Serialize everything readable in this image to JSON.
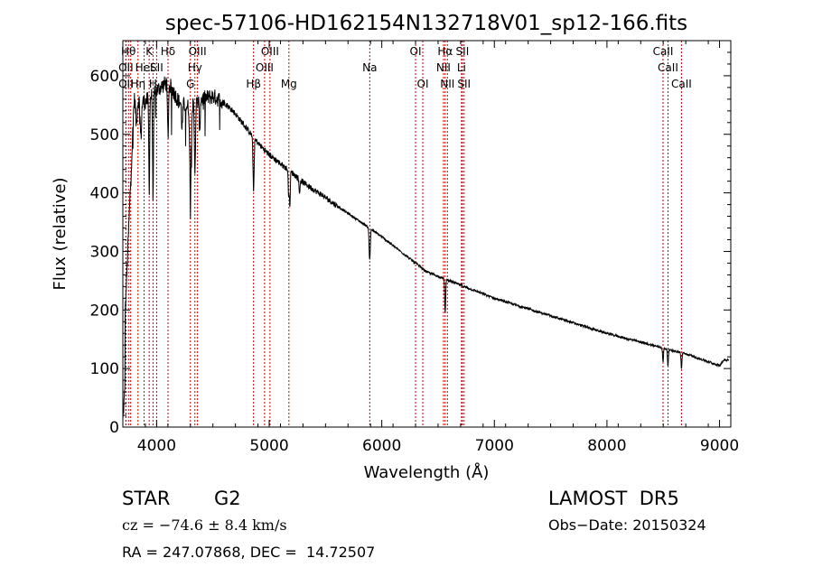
{
  "chart_data": {
    "type": "line",
    "title": "spec-57106-HD162154N132718V01_sp12-166.fits",
    "xlabel": "Wavelength (Å)",
    "ylabel": "Flux (relative)",
    "xlim": [
      3700,
      9100
    ],
    "ylim": [
      0,
      660
    ],
    "xticks": [
      4000,
      5000,
      6000,
      7000,
      8000,
      9000
    ],
    "yticks": [
      0,
      100,
      200,
      300,
      400,
      500,
      600
    ],
    "grid": false,
    "line_color": "#000000",
    "marker_color": "#cc0000",
    "continuum": [
      [
        3700,
        100
      ],
      [
        3800,
        560
      ],
      [
        3900,
        555
      ],
      [
        4000,
        575
      ],
      [
        4100,
        590
      ],
      [
        4200,
        555
      ],
      [
        4300,
        545
      ],
      [
        4400,
        560
      ],
      [
        4500,
        565
      ],
      [
        4600,
        555
      ],
      [
        4700,
        535
      ],
      [
        4800,
        510
      ],
      [
        4900,
        485
      ],
      [
        5000,
        465
      ],
      [
        5100,
        450
      ],
      [
        5200,
        435
      ],
      [
        5300,
        418
      ],
      [
        5400,
        405
      ],
      [
        5500,
        392
      ],
      [
        5600,
        378
      ],
      [
        5800,
        352
      ],
      [
        6000,
        325
      ],
      [
        6200,
        295
      ],
      [
        6400,
        265
      ],
      [
        6600,
        250
      ],
      [
        7000,
        220
      ],
      [
        7500,
        190
      ],
      [
        8000,
        160
      ],
      [
        8500,
        135
      ],
      [
        8700,
        125
      ],
      [
        9000,
        105
      ],
      [
        9040,
        115
      ],
      [
        9080,
        115
      ]
    ],
    "absorption": [
      [
        3934,
        160,
        4
      ],
      [
        3968,
        170,
        4
      ],
      [
        3820,
        40,
        6
      ],
      [
        3860,
        60,
        6
      ],
      [
        4101,
        90,
        5
      ],
      [
        4226,
        40,
        5
      ],
      [
        4300,
        150,
        6
      ],
      [
        4340,
        110,
        5
      ],
      [
        4383,
        50,
        4
      ],
      [
        4861,
        90,
        5
      ],
      [
        5172,
        40,
        4
      ],
      [
        5183,
        60,
        4
      ],
      [
        5269,
        25,
        4
      ],
      [
        5890,
        40,
        4
      ],
      [
        5896,
        30,
        4
      ],
      [
        6563,
        60,
        4
      ],
      [
        8498,
        25,
        4
      ],
      [
        8542,
        30,
        4
      ],
      [
        8662,
        28,
        4
      ]
    ],
    "lines": [
      {
        "wl": 3750,
        "label": "Hθ",
        "row": 0
      },
      {
        "wl": 3727,
        "label": "OII",
        "row": 1
      },
      {
        "wl": 3727,
        "label": "OII",
        "row": 2
      },
      {
        "wl": 3770,
        "label": "",
        "row": -1
      },
      {
        "wl": 3835,
        "label": "Hη",
        "row": 2
      },
      {
        "wl": 3889,
        "label": "HeI",
        "row": 1
      },
      {
        "wl": 3934,
        "label": "K",
        "row": 0
      },
      {
        "wl": 3968,
        "label": "H",
        "row": 2
      },
      {
        "wl": 4000,
        "label": "SII",
        "row": 1
      },
      {
        "wl": 4101,
        "label": "Hδ",
        "row": 0
      },
      {
        "wl": 4300,
        "label": "G",
        "row": 2
      },
      {
        "wl": 4340,
        "label": "Hγ",
        "row": 1
      },
      {
        "wl": 4363,
        "label": "OIII",
        "row": 0
      },
      {
        "wl": 4861,
        "label": "Hβ",
        "row": 2
      },
      {
        "wl": 4959,
        "label": "OIII",
        "row": 1
      },
      {
        "wl": 5007,
        "label": "OIII",
        "row": 0
      },
      {
        "wl": 5175,
        "label": "Mg",
        "row": 2
      },
      {
        "wl": 5893,
        "label": "Na",
        "row": 1
      },
      {
        "wl": 6300,
        "label": "OI",
        "row": 0
      },
      {
        "wl": 6364,
        "label": "OI",
        "row": 2
      },
      {
        "wl": 6548,
        "label": "NII",
        "row": 1
      },
      {
        "wl": 6563,
        "label": "Hα",
        "row": 0
      },
      {
        "wl": 6583,
        "label": "NII",
        "row": 2
      },
      {
        "wl": 6708,
        "label": "Li",
        "row": 1
      },
      {
        "wl": 6716,
        "label": "SII",
        "row": 0
      },
      {
        "wl": 6731,
        "label": "SII",
        "row": 2
      },
      {
        "wl": 8498,
        "label": "CaII",
        "row": 0
      },
      {
        "wl": 8542,
        "label": "CaII",
        "row": 1
      },
      {
        "wl": 8662,
        "label": "CaII",
        "row": 2
      }
    ]
  },
  "info": {
    "class": "STAR",
    "subclass": "G2",
    "survey": "LAMOST  DR5",
    "cz": "cz = −74.6 ± 8.4 km/s",
    "obs_date": "Obs−Date: 20150324",
    "coords": "RA = 247.07868, DEC =  14.72507"
  }
}
